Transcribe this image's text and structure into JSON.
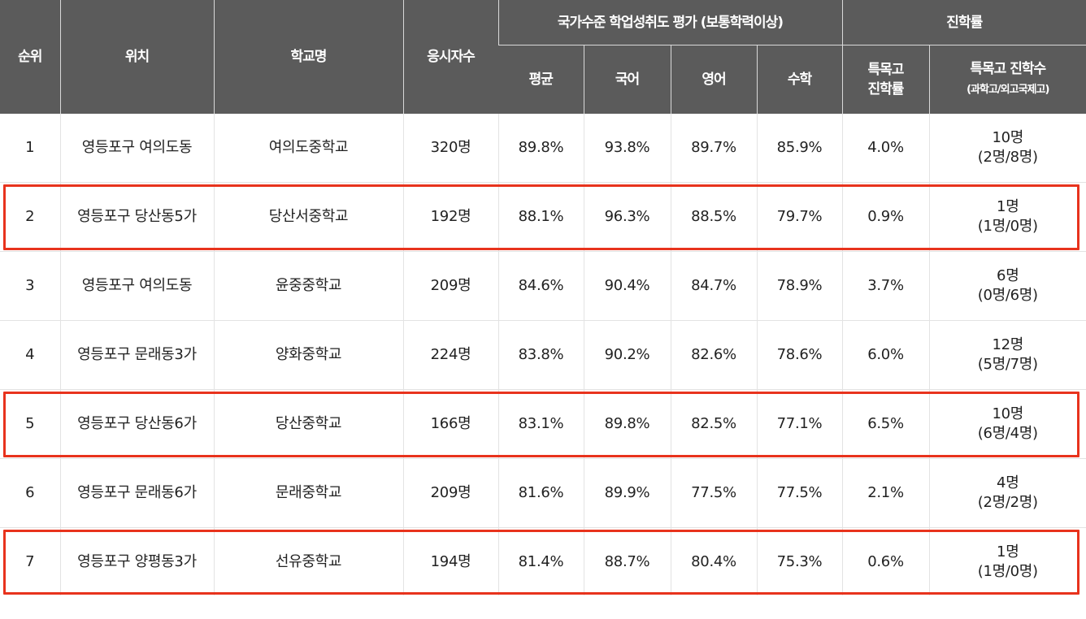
{
  "header": {
    "rank": "순위",
    "location": "위치",
    "school": "학교명",
    "examinees": "응시자수",
    "achievement_group": "국가수준 학업성취도 평가 (보통학력이상)",
    "avg": "평균",
    "korean": "국어",
    "english": "영어",
    "math": "수학",
    "advancement_group": "진학률",
    "special_rate_line1": "특목고",
    "special_rate_line2": "진학률",
    "special_count_line1": "특목고 진학수",
    "special_count_line2": "(과학고/외고국제고)"
  },
  "rows": [
    {
      "rank": "1",
      "location": "영등포구 여의도동",
      "school": "여의도중학교",
      "examinees": "320명",
      "avg": "89.8%",
      "korean": "93.8%",
      "english": "89.7%",
      "math": "85.9%",
      "special_rate": "4.0%",
      "special_count": "10명",
      "special_split": "(2명/8명)"
    },
    {
      "rank": "2",
      "location": "영등포구 당산동5가",
      "school": "당산서중학교",
      "examinees": "192명",
      "avg": "88.1%",
      "korean": "96.3%",
      "english": "88.5%",
      "math": "79.7%",
      "special_rate": "0.9%",
      "special_count": "1명",
      "special_split": "(1명/0명)"
    },
    {
      "rank": "3",
      "location": "영등포구 여의도동",
      "school": "윤중중학교",
      "examinees": "209명",
      "avg": "84.6%",
      "korean": "90.4%",
      "english": "84.7%",
      "math": "78.9%",
      "special_rate": "3.7%",
      "special_count": "6명",
      "special_split": "(0명/6명)"
    },
    {
      "rank": "4",
      "location": "영등포구 문래동3가",
      "school": "양화중학교",
      "examinees": "224명",
      "avg": "83.8%",
      "korean": "90.2%",
      "english": "82.6%",
      "math": "78.6%",
      "special_rate": "6.0%",
      "special_count": "12명",
      "special_split": "(5명/7명)"
    },
    {
      "rank": "5",
      "location": "영등포구 당산동6가",
      "school": "당산중학교",
      "examinees": "166명",
      "avg": "83.1%",
      "korean": "89.8%",
      "english": "82.5%",
      "math": "77.1%",
      "special_rate": "6.5%",
      "special_count": "10명",
      "special_split": "(6명/4명)"
    },
    {
      "rank": "6",
      "location": "영등포구 문래동6가",
      "school": "문래중학교",
      "examinees": "209명",
      "avg": "81.6%",
      "korean": "89.9%",
      "english": "77.5%",
      "math": "77.5%",
      "special_rate": "2.1%",
      "special_count": "4명",
      "special_split": "(2명/2명)"
    },
    {
      "rank": "7",
      "location": "영등포구 양평동3가",
      "school": "선유중학교",
      "examinees": "194명",
      "avg": "81.4%",
      "korean": "88.7%",
      "english": "80.4%",
      "math": "75.3%",
      "special_rate": "0.6%",
      "special_count": "1명",
      "special_split": "(1명/0명)"
    }
  ],
  "highlight_color": "#e8331d",
  "highlighted_ranks": [
    "2",
    "5",
    "7"
  ]
}
